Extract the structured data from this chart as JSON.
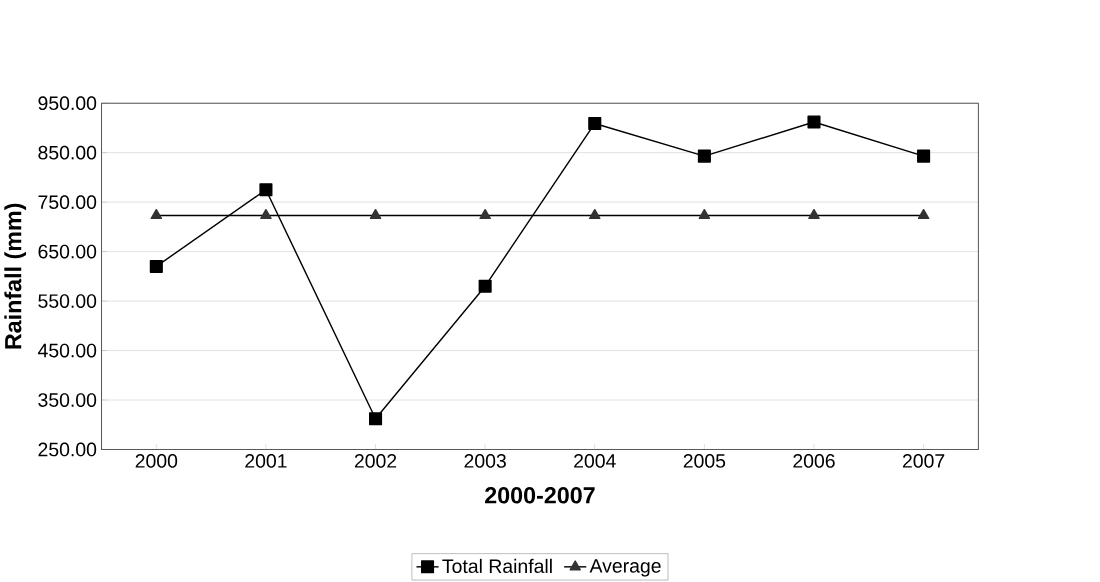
{
  "chart_data": {
    "type": "line",
    "xlabel": "2000-2007",
    "ylabel": "Rainfall (mm)",
    "categories": [
      "2000",
      "2001",
      "2002",
      "2003",
      "2004",
      "2005",
      "2006",
      "2007"
    ],
    "series": [
      {
        "name": "Total Rainfall",
        "color": "#000000",
        "marker": "square",
        "values": [
          620,
          775,
          312,
          580,
          909,
          843,
          912,
          843
        ]
      },
      {
        "name": "Average",
        "color": "#333333",
        "marker": "triangle",
        "values": [
          723,
          723,
          723,
          723,
          723,
          723,
          723,
          723
        ]
      }
    ],
    "ylim": [
      250,
      950
    ],
    "yticks": [
      {
        "value": 250,
        "label": "250.00"
      },
      {
        "value": 350,
        "label": "350.00"
      },
      {
        "value": 450,
        "label": "450.00"
      },
      {
        "value": 550,
        "label": "550.00"
      },
      {
        "value": 650,
        "label": "650.00"
      },
      {
        "value": 750,
        "label": "750.00"
      },
      {
        "value": 850,
        "label": "850.00"
      },
      {
        "value": 950,
        "label": "950.00"
      }
    ],
    "grid": "y",
    "legend": "bottom",
    "line_style": "solid"
  }
}
